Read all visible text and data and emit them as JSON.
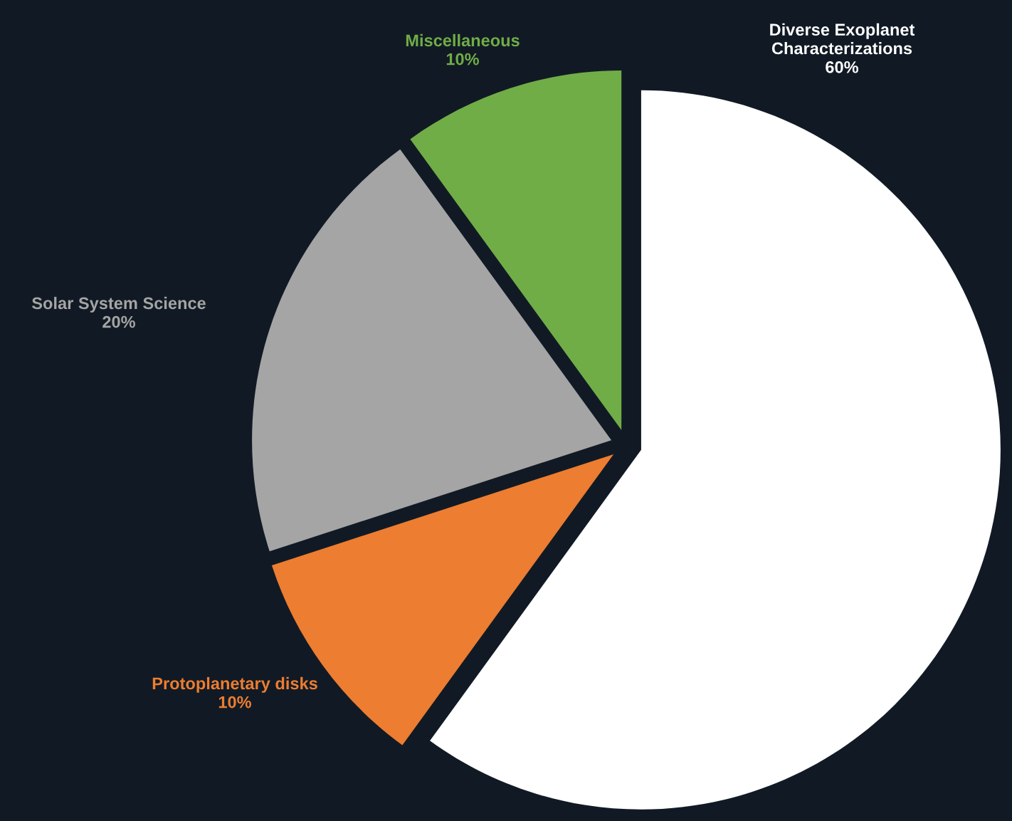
{
  "chart_data": {
    "type": "pie",
    "categories": [
      "Diverse Exoplanet\nCharacterizations",
      "Protoplanetary disks",
      "Solar System Science",
      "Miscellaneous"
    ],
    "values": [
      60,
      10,
      20,
      10
    ],
    "value_labels": [
      "60%",
      "10%",
      "20%",
      "10%"
    ],
    "colors": [
      "#ffffff",
      "#ed7d31",
      "#a5a5a5",
      "#70ad47"
    ]
  }
}
